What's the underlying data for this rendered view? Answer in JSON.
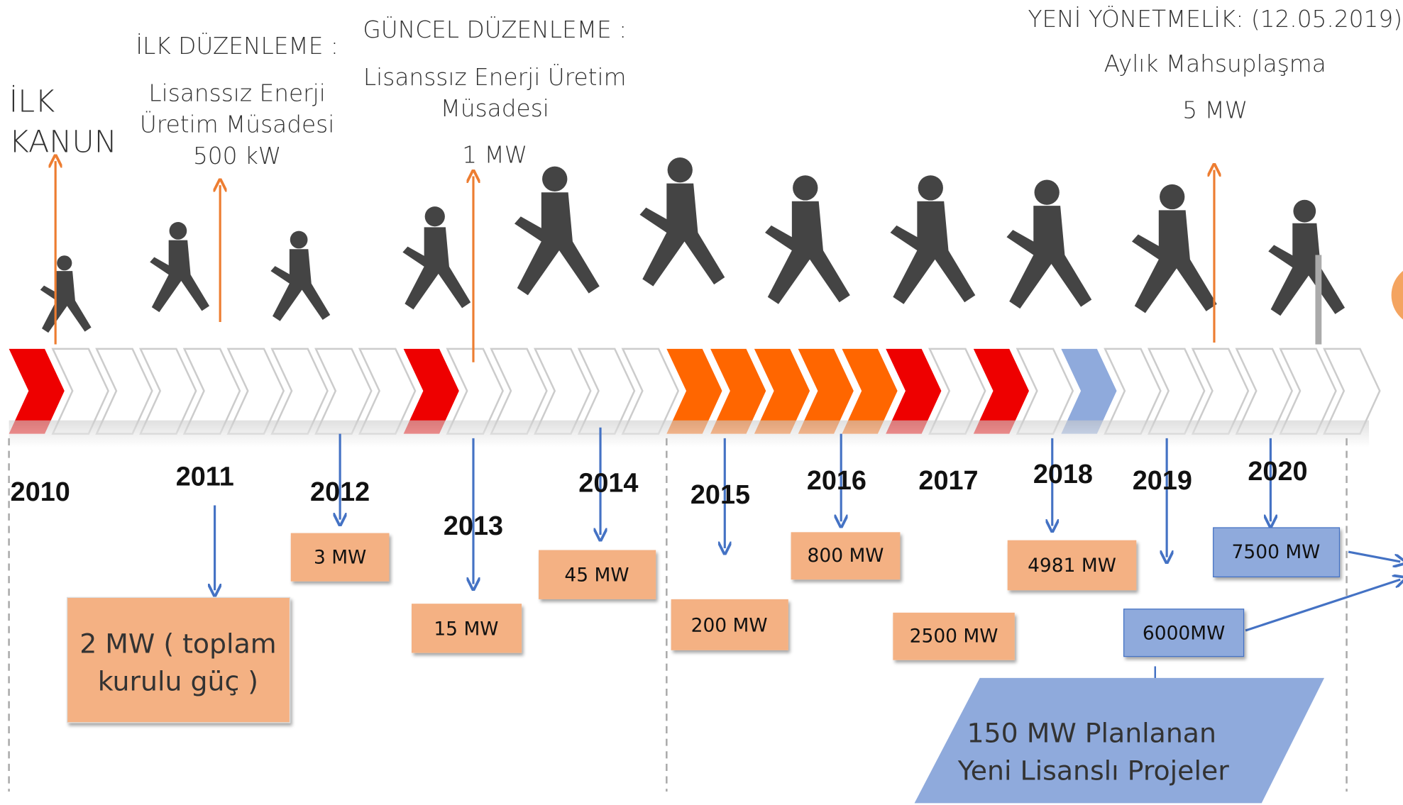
{
  "annotations": [
    {
      "lines": [
        "İLK",
        "KANUN"
      ]
    },
    {
      "title": "İLK DÜZENLEME :",
      "lines": [
        "Lisanssız Enerji",
        "Üretim Müsadesi",
        "500 kW"
      ]
    },
    {
      "title": "GÜNCEL DÜZENLEME :",
      "lines": [
        "Lisanssız Enerji Üretim",
        "Müsadesi",
        "1 MW"
      ]
    },
    {
      "title": "YENİ YÖNETMELİK: (12.05.2019)",
      "lines": [
        "Aylık Mahsuplaşma",
        "5  MW"
      ]
    }
  ],
  "years": [
    "2010",
    "2011",
    "2012",
    "2013",
    "2014",
    "2015",
    "2016",
    "2017",
    "2018",
    "2019",
    "2020"
  ],
  "boxes": [
    {
      "lines": [
        "2 MW ( toplam",
        "kurulu güç )"
      ]
    },
    {
      "text": "3  MW"
    },
    {
      "text": "15  MW"
    },
    {
      "text": "45  MW"
    },
    {
      "text": "200  MW"
    },
    {
      "text": "800 MW"
    },
    {
      "text": "2500 MW"
    },
    {
      "text": "4981 MW"
    },
    {
      "text": "6000MW"
    },
    {
      "text": "7500 MW"
    }
  ],
  "planned": [
    "150 MW Planlanan",
    "Yeni Lisanslı Projeler"
  ]
}
